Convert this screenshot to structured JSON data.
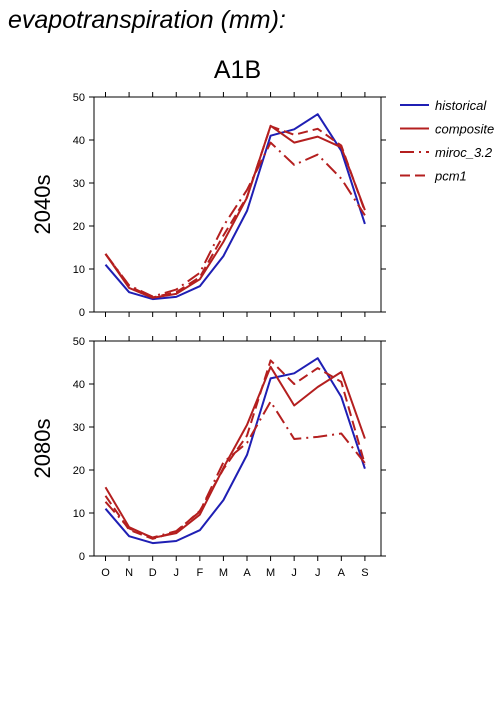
{
  "page_title": "evapotranspiration (mm):",
  "scenario": "A1B",
  "chart_data": {
    "type": "line",
    "categories": [
      "O",
      "N",
      "D",
      "J",
      "F",
      "M",
      "A",
      "M",
      "J",
      "J",
      "A",
      "S"
    ],
    "ylim": [
      0,
      50
    ],
    "yticks": [
      0,
      10,
      20,
      30,
      40,
      50
    ],
    "legend": {
      "placement": "right"
    },
    "series_styles": [
      {
        "name": "historical",
        "color": "#1f1fb4",
        "dash": ""
      },
      {
        "name": "composite",
        "color": "#b41f1f",
        "dash": ""
      },
      {
        "name": "miroc_3.2",
        "color": "#b41f1f",
        "dash": "14 5 2 5"
      },
      {
        "name": "pcm1",
        "color": "#b41f1f",
        "dash": "10 5"
      }
    ],
    "panels": [
      {
        "label": "2040s",
        "series": [
          {
            "name": "historical",
            "values": [
              11.0,
              4.6,
              3.0,
              3.5,
              6.0,
              13.0,
              23.5,
              41.0,
              42.5,
              46.0,
              37.5,
              20.5
            ]
          },
          {
            "name": "composite",
            "values": [
              13.5,
              5.6,
              3.3,
              4.2,
              7.6,
              16.3,
              26.6,
              43.3,
              39.4,
              40.8,
              38.3,
              23.7
            ]
          },
          {
            "name": "miroc_3.2",
            "values": [
              13.5,
              6.2,
              3.6,
              5.2,
              9.1,
              20.0,
              28.4,
              39.4,
              34.2,
              36.6,
              31.0,
              22.5
            ]
          },
          {
            "name": "pcm1",
            "values": [
              13.5,
              6.0,
              3.4,
              4.6,
              8.1,
              17.8,
              26.8,
              43.2,
              41.2,
              42.6,
              38.7,
              23.4
            ]
          }
        ]
      },
      {
        "label": "2080s",
        "series": [
          {
            "name": "historical",
            "values": [
              11.0,
              4.6,
              3.0,
              3.5,
              6.0,
              13.0,
              23.5,
              41.3,
              42.5,
              46.0,
              37.0,
              20.3
            ]
          },
          {
            "name": "composite",
            "values": [
              16.0,
              6.7,
              4.2,
              5.3,
              9.6,
              20.5,
              30.5,
              44.0,
              35.0,
              39.3,
              42.8,
              27.3
            ]
          },
          {
            "name": "miroc_3.2",
            "values": [
              12.6,
              6.4,
              4.3,
              5.8,
              10.3,
              21.8,
              26.3,
              35.9,
              27.2,
              27.7,
              28.5,
              21.6
            ]
          },
          {
            "name": "pcm1",
            "values": [
              14.0,
              6.1,
              4.0,
              5.6,
              10.5,
              20.2,
              28.0,
              45.5,
              40.0,
              43.7,
              40.5,
              21.3
            ]
          }
        ]
      }
    ]
  }
}
